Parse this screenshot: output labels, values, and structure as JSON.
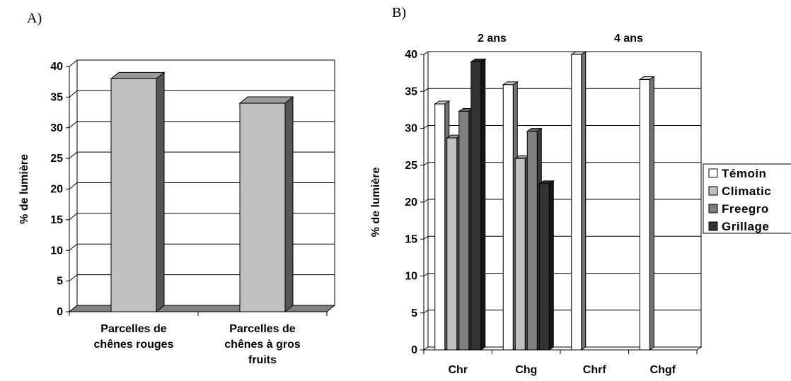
{
  "panels": {
    "a_label": "A)",
    "b_label": "B)"
  },
  "colors": {
    "panel_a_bar": "#c0c0c0",
    "floor": "#808080",
    "Témoin": "#ffffff",
    "Climatic": "#c0c0c0",
    "Freegro": "#808080",
    "Grillage": "#333333"
  },
  "chart_data": [
    {
      "type": "bar",
      "style": "3d",
      "ylabel": "% de lumière",
      "ylim": [
        0,
        40
      ],
      "yticks": [
        0,
        5,
        10,
        15,
        20,
        25,
        30,
        35,
        40
      ],
      "grid": true,
      "categories": [
        [
          "Parcelles de",
          "chênes rouges"
        ],
        [
          "Parcelles de",
          "chênes à gros",
          "fruits"
        ]
      ],
      "values": [
        38,
        34
      ]
    },
    {
      "type": "bar",
      "style": "3d",
      "ylabel": "% de lumière",
      "ylim": [
        0,
        40
      ],
      "yticks": [
        0,
        5,
        10,
        15,
        20,
        25,
        30,
        35,
        40
      ],
      "grid": true,
      "top_labels": [
        "2 ans",
        "4 ans"
      ],
      "categories": [
        "Chr",
        "Chg",
        "Chrf",
        "Chgf"
      ],
      "legend_position": "right",
      "series": [
        {
          "name": "Témoin",
          "values": [
            33.3,
            35.9,
            40,
            36.6
          ]
        },
        {
          "name": "Climatic",
          "values": [
            28.7,
            25.9,
            0,
            0
          ]
        },
        {
          "name": "Freegro",
          "values": [
            32.3,
            29.6,
            0,
            0
          ]
        },
        {
          "name": "Grillage",
          "values": [
            39,
            22.5,
            0,
            0
          ]
        }
      ]
    }
  ]
}
